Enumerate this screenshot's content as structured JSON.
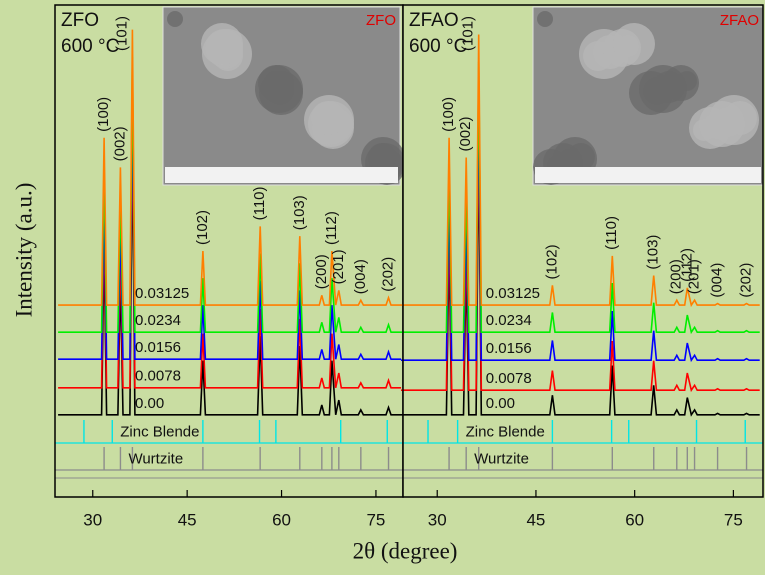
{
  "chart_data": [
    {
      "type": "line",
      "title": "ZFO",
      "subtitle": "600 °C",
      "inset_label": "ZFO",
      "ylabel": "Intensity (a.u.)",
      "xlabel": "2θ (degree)",
      "xlim": [
        24,
        79.3
      ],
      "ylim": [
        0,
        100
      ],
      "xticks": [
        30,
        45,
        60,
        75
      ],
      "x": [
        24.5,
        31.4,
        31.8,
        32.2,
        34.0,
        34.4,
        34.8,
        35.9,
        36.3,
        36.7,
        47.1,
        47.5,
        47.9,
        56.2,
        56.6,
        57.0,
        62.5,
        62.9,
        63.3,
        66.0,
        66.4,
        66.8,
        67.6,
        68.0,
        68.6,
        69.1,
        69.5,
        72.2,
        72.6,
        73.0,
        76.6,
        77.0,
        77.4,
        79.0
      ],
      "series": [
        {
          "name": "0.03125",
          "color": "#ff7f00",
          "values": [
            39,
            39,
            73,
            39,
            39,
            67,
            39,
            39,
            95,
            39,
            39,
            50,
            39,
            39,
            55,
            39,
            39,
            53,
            39,
            39,
            41,
            39,
            39,
            50,
            39,
            42,
            39,
            39,
            40,
            39,
            39,
            40.5,
            39,
            39
          ]
        },
        {
          "name": "0.0234",
          "color": "#00ee00",
          "values": [
            33.5,
            33.5,
            67.5,
            33.5,
            33.5,
            61.5,
            33.5,
            33.5,
            89.5,
            33.5,
            33.5,
            44.5,
            33.5,
            33.5,
            49.5,
            33.5,
            33.5,
            47.5,
            33.5,
            33.5,
            35.5,
            33.5,
            33.5,
            44.5,
            33.5,
            36.5,
            33.5,
            33.5,
            34.5,
            33.5,
            33.5,
            35,
            33.5,
            33.5
          ]
        },
        {
          "name": "0.0156",
          "color": "#0000ff",
          "values": [
            28,
            28,
            62,
            28,
            28,
            56,
            28,
            28,
            84,
            28,
            28,
            39,
            28,
            28,
            44,
            28,
            28,
            42,
            28,
            28,
            30,
            28,
            28,
            39,
            28,
            31,
            28,
            28,
            29,
            28,
            28,
            29.5,
            28,
            28
          ]
        },
        {
          "name": "0.0078",
          "color": "#ff0000",
          "values": [
            22.2,
            22.2,
            56.2,
            22.2,
            22.2,
            50.2,
            22.2,
            22.2,
            78.2,
            22.2,
            22.2,
            33.2,
            22.2,
            22.2,
            38.2,
            22.2,
            22.2,
            36.2,
            22.2,
            22.2,
            24.2,
            22.2,
            22.2,
            33.2,
            22.2,
            25.2,
            22.2,
            22.2,
            23.2,
            22.2,
            22.2,
            23.7,
            22.2,
            22.2
          ]
        },
        {
          "name": "0.00",
          "color": "#000000",
          "values": [
            16.7,
            16.7,
            50.7,
            16.7,
            16.7,
            44.7,
            16.7,
            16.7,
            72.7,
            16.7,
            16.7,
            27.7,
            16.7,
            16.7,
            32.7,
            16.7,
            16.7,
            30.7,
            16.7,
            16.7,
            18.7,
            16.7,
            16.7,
            27.7,
            16.7,
            19.7,
            16.7,
            16.7,
            17.7,
            16.7,
            16.7,
            18.2,
            16.7,
            16.7
          ]
        }
      ],
      "references": [
        {
          "name": "Zinc Blende",
          "color": "#00e5e5",
          "positions": [
            28.6,
            33.1,
            47.5,
            56.5,
            59.1,
            69.4,
            76.8
          ]
        },
        {
          "name": "Wurtzite",
          "color": "#8c8c8c",
          "positions": [
            31.8,
            34.4,
            36.3,
            47.5,
            56.6,
            62.9,
            66.4,
            68.0,
            69.1,
            72.6,
            77.0
          ]
        }
      ],
      "peak_labels": [
        "(100)",
        "(002)",
        "(101)",
        "(102)",
        "(110)",
        "(103)",
        "(200)",
        "(112)",
        "(201)",
        "(004)",
        "(202)"
      ]
    },
    {
      "type": "line",
      "title": "ZFAO",
      "subtitle": "600 °C",
      "inset_label": "ZFAO",
      "xlim": [
        24.8,
        79.5
      ],
      "ylim": [
        0,
        100
      ],
      "xticks": [
        30,
        45,
        60,
        75
      ],
      "x": [
        24.5,
        31.4,
        31.8,
        32.2,
        34.0,
        34.4,
        34.8,
        35.9,
        36.3,
        36.7,
        47.1,
        47.5,
        47.9,
        56.2,
        56.6,
        57.0,
        62.5,
        62.9,
        63.3,
        66.0,
        66.4,
        66.8,
        67.6,
        68.0,
        68.6,
        69.1,
        69.5,
        72.2,
        72.6,
        73.0,
        76.6,
        77.0,
        77.4,
        79.0
      ],
      "series": [
        {
          "name": "0.03125",
          "color": "#ff7f00",
          "values": [
            39,
            39,
            73,
            39,
            39,
            69,
            39,
            39,
            94,
            39,
            39,
            43,
            39,
            39,
            49,
            39,
            39,
            45,
            39,
            39,
            40,
            39,
            39,
            42.5,
            39,
            40,
            39,
            39,
            39.3,
            39,
            39,
            39.3,
            39,
            39
          ]
        },
        {
          "name": "0.0234",
          "color": "#00ee00",
          "values": [
            33.5,
            33.5,
            67.5,
            33.5,
            33.5,
            63.5,
            33.5,
            33.5,
            88.5,
            33.5,
            33.5,
            37.5,
            33.5,
            33.5,
            43.5,
            33.5,
            33.5,
            39.5,
            33.5,
            33.5,
            34.5,
            33.5,
            33.5,
            37,
            33.5,
            34.5,
            33.5,
            33.5,
            33.8,
            33.5,
            33.5,
            33.8,
            33.5,
            33.5
          ]
        },
        {
          "name": "0.0156",
          "color": "#0000ff",
          "values": [
            27.8,
            27.8,
            61.8,
            27.8,
            27.8,
            57.8,
            27.8,
            27.8,
            82.8,
            27.8,
            27.8,
            31.8,
            27.8,
            27.8,
            37.8,
            27.8,
            27.8,
            33.8,
            27.8,
            27.8,
            28.8,
            27.8,
            27.8,
            31.3,
            27.8,
            28.8,
            27.8,
            27.8,
            28.1,
            27.8,
            27.8,
            28.1,
            27.8,
            27.8
          ]
        },
        {
          "name": "0.0078",
          "color": "#ff0000",
          "values": [
            21.7,
            21.7,
            55.7,
            21.7,
            21.7,
            51.7,
            21.7,
            21.7,
            76.7,
            21.7,
            21.7,
            25.7,
            21.7,
            21.7,
            31.7,
            21.7,
            21.7,
            27.7,
            21.7,
            21.7,
            22.7,
            21.7,
            21.7,
            25.2,
            21.7,
            22.7,
            21.7,
            21.7,
            22,
            21.7,
            21.7,
            22,
            21.7,
            21.7
          ]
        },
        {
          "name": "0.00",
          "color": "#000000",
          "values": [
            16.7,
            16.7,
            50.7,
            16.7,
            16.7,
            46.7,
            16.7,
            16.7,
            71.7,
            16.7,
            16.7,
            20.7,
            16.7,
            16.7,
            26.7,
            16.7,
            16.7,
            22.7,
            16.7,
            16.7,
            17.7,
            16.7,
            16.7,
            20.2,
            16.7,
            17.7,
            16.7,
            16.7,
            17,
            16.7,
            16.7,
            17,
            16.7,
            16.7
          ]
        }
      ],
      "references": [
        {
          "name": "Zinc Blende",
          "color": "#00e5e5",
          "positions": [
            28.6,
            33.1,
            47.5,
            56.5,
            59.1,
            69.4,
            76.8
          ]
        },
        {
          "name": "Wurtzite",
          "color": "#8c8c8c",
          "positions": [
            31.8,
            34.4,
            36.3,
            47.5,
            56.6,
            62.9,
            66.4,
            68.0,
            69.1,
            72.6,
            77.0
          ]
        }
      ],
      "peak_labels": [
        "(100)",
        "(002)",
        "(101)",
        "(102)",
        "(110)",
        "(103)",
        "(200)",
        "(112)",
        "(201)",
        "(004)",
        "(202)"
      ]
    }
  ]
}
